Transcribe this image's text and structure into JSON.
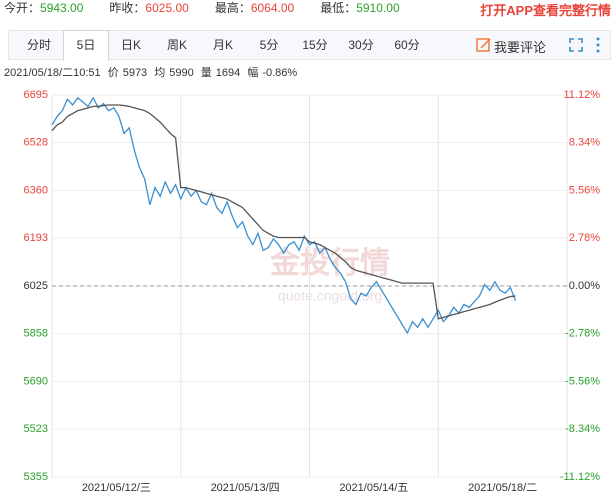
{
  "header": {
    "quotes": [
      {
        "label": "今开：",
        "value": "5943.00"
      },
      {
        "label": "昨收：",
        "value": "6025.00"
      },
      {
        "label": "最高：",
        "value": "6064.00"
      },
      {
        "label": "最低：",
        "value": "5910.00"
      }
    ],
    "app_link": "打开APP查看完整行情"
  },
  "tabs": {
    "items": [
      "分时",
      "5日",
      "日K",
      "周K",
      "月K",
      "5分",
      "15分",
      "30分",
      "60分"
    ],
    "active": 1,
    "comment": "我要评论"
  },
  "info": {
    "time": "2021/05/18/二10:51",
    "price_label": "价",
    "price": "5973",
    "avg_label": "均",
    "avg": "5990",
    "vol_label": "量",
    "vol": "1694",
    "chg_label": "幅",
    "chg": "-0.86%"
  },
  "chart_data": {
    "type": "line",
    "watermark": "金投行情",
    "watermark_url": "quote.cngold.org",
    "days": [
      "2021/05/12/三",
      "2021/05/13/四",
      "2021/05/14/五",
      "2021/05/18/二"
    ],
    "x": [
      0,
      1,
      2,
      3,
      4,
      5,
      6,
      7,
      8,
      9,
      10,
      11,
      12,
      13,
      14,
      15,
      16,
      17,
      18,
      19,
      20,
      21,
      22,
      23,
      24,
      25,
      26,
      27,
      28,
      29,
      30,
      31,
      32,
      33,
      34,
      35,
      36,
      37,
      38,
      39,
      40,
      41,
      42,
      43,
      44,
      45,
      46,
      47,
      48,
      49,
      50,
      51,
      52,
      53,
      54,
      55,
      56,
      57,
      58,
      59,
      60,
      61,
      62,
      63,
      64,
      65,
      66,
      67,
      68,
      69,
      70,
      71,
      72,
      73,
      74,
      75,
      76,
      77,
      78,
      79,
      80,
      81,
      82,
      83,
      84,
      85,
      86,
      87,
      88,
      89,
      90
    ],
    "xlim": [
      0,
      100
    ],
    "series": [
      {
        "name": "价",
        "color": "#3a8fd0",
        "values": [
          6590,
          6620,
          6640,
          6680,
          6660,
          6685,
          6670,
          6655,
          6685,
          6650,
          6665,
          6640,
          6650,
          6620,
          6560,
          6580,
          6500,
          6440,
          6400,
          6310,
          6370,
          6340,
          6390,
          6350,
          6380,
          6330,
          6370,
          6340,
          6360,
          6320,
          6310,
          6350,
          6300,
          6280,
          6320,
          6270,
          6230,
          6250,
          6200,
          6170,
          6210,
          6150,
          6160,
          6190,
          6170,
          6140,
          6170,
          6180,
          6150,
          6200,
          6170,
          6180,
          6140,
          6160,
          6120,
          6090,
          6070,
          6040,
          5980,
          5960,
          6000,
          5990,
          6020,
          6040,
          6010,
          5980,
          5950,
          5920,
          5890,
          5860,
          5900,
          5880,
          5910,
          5880,
          5910,
          5940,
          5900,
          5920,
          5950,
          5930,
          5960,
          5950,
          5970,
          5990,
          6030,
          6010,
          6040,
          6010,
          6000,
          6020,
          5973
        ]
      },
      {
        "name": "均",
        "color": "#555555",
        "values": [
          6570,
          6590,
          6600,
          6620,
          6630,
          6640,
          6645,
          6650,
          6655,
          6655,
          6658,
          6660,
          6660,
          6660,
          6658,
          6655,
          6650,
          6645,
          6640,
          6630,
          6615,
          6600,
          6580,
          6560,
          6545,
          6370,
          6370,
          6365,
          6360,
          6355,
          6350,
          6345,
          6340,
          6335,
          6330,
          6320,
          6310,
          6300,
          6280,
          6260,
          6240,
          6220,
          6210,
          6200,
          6195,
          6195,
          6195,
          6195,
          6195,
          6195,
          6180,
          6175,
          6170,
          6160,
          6150,
          6140,
          6125,
          6110,
          6090,
          6080,
          6075,
          6070,
          6065,
          6060,
          6055,
          6050,
          6045,
          6040,
          6035,
          6035,
          6035,
          6035,
          6035,
          6035,
          6035,
          5910,
          5915,
          5920,
          5925,
          5930,
          5935,
          5940,
          5945,
          5950,
          5955,
          5960,
          5968,
          5975,
          5982,
          5988,
          5990
        ]
      }
    ],
    "reference_line": 6025,
    "ylim": [
      5355,
      6695
    ],
    "yticks": [
      6695,
      6528,
      6360,
      6193,
      6025,
      5858,
      5690,
      5523,
      5355
    ],
    "y2lim": [
      -11.12,
      11.12
    ],
    "y2ticks": [
      {
        "value": 11.12,
        "label": "11.12%"
      },
      {
        "value": 8.34,
        "label": "8.34%"
      },
      {
        "value": 5.56,
        "label": "5.56%"
      },
      {
        "value": 2.78,
        "label": "2.78%"
      },
      {
        "value": 0,
        "label": "0.00%"
      },
      {
        "value": -2.78,
        "label": "-2.78%"
      },
      {
        "value": -5.56,
        "label": "-5.56%"
      },
      {
        "value": -8.34,
        "label": "-8.34%"
      },
      {
        "value": -11.12,
        "label": "-11.12%"
      }
    ],
    "up_color": "#e8443a",
    "down_color": "#2aa12a",
    "grid": true
  }
}
